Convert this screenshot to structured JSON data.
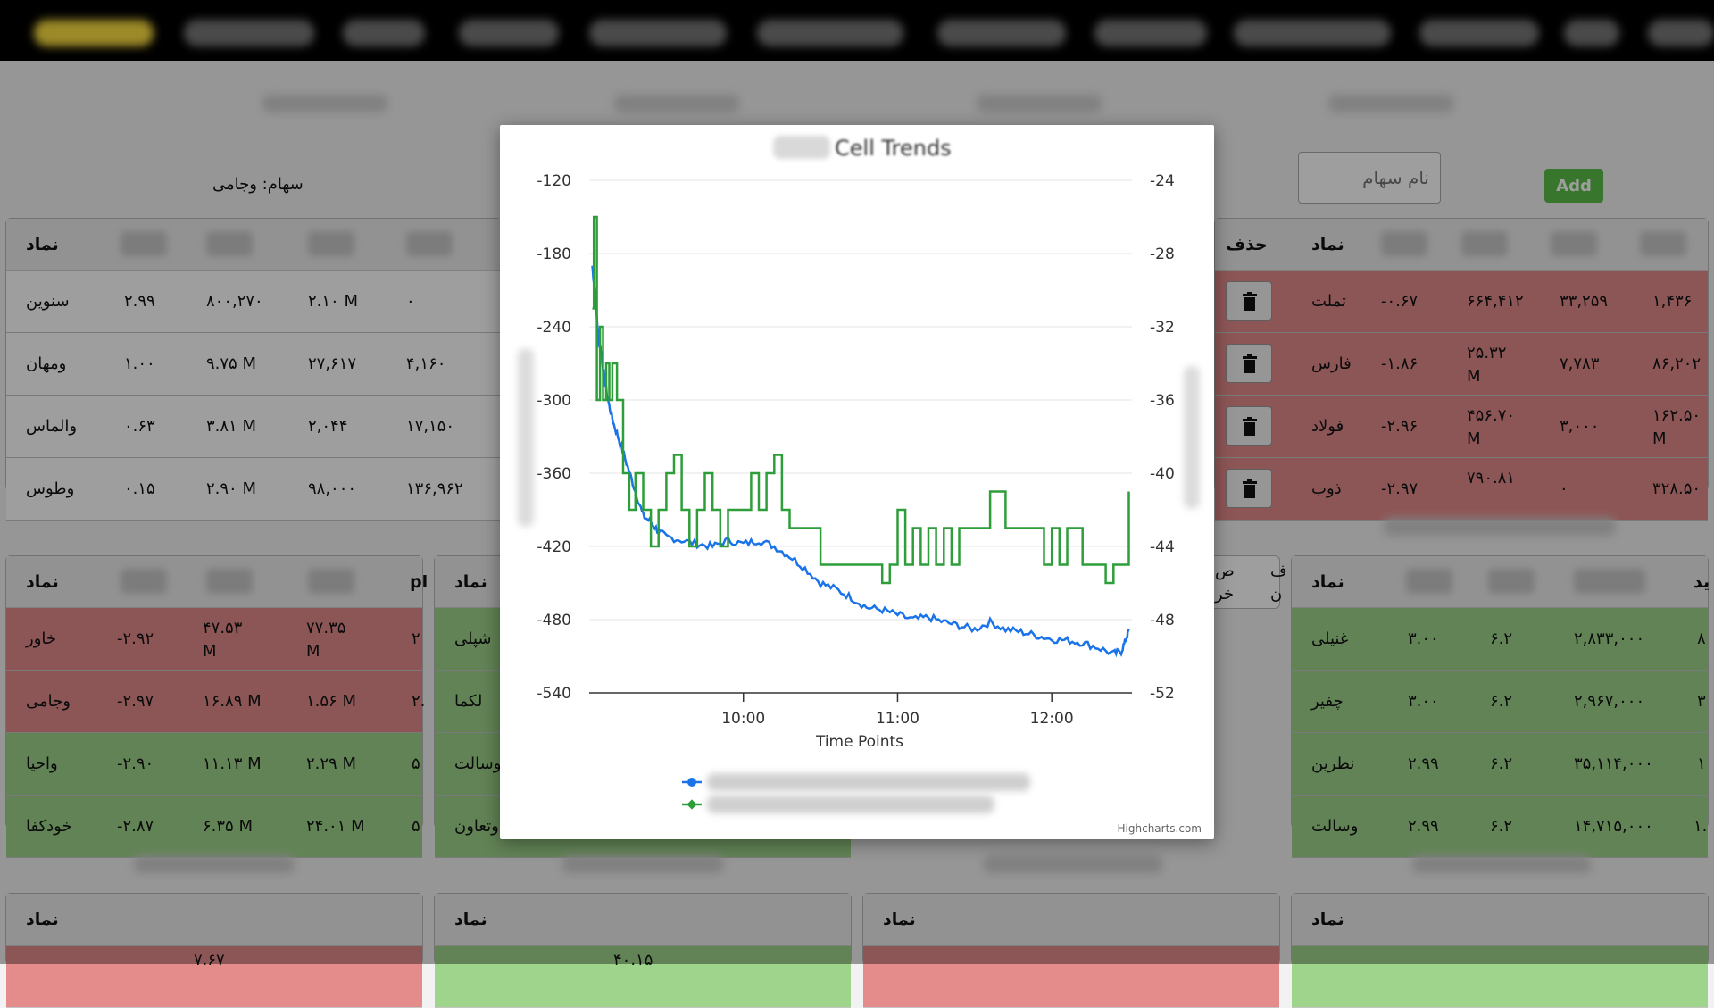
{
  "nav": {
    "items": [
      "",
      "",
      "",
      "",
      "",
      "",
      "",
      "",
      "",
      "",
      "",
      ""
    ],
    "active_index": 0
  },
  "left_panel": {
    "caption": "سهام: وجامی",
    "header_symbol": "نماد",
    "rows": [
      {
        "symbol": "سنوین",
        "c1": "۲.۹۹",
        "c2": "۸۰۰,۲۷۰",
        "c3": "۲.۱۰ M",
        "c4": "۰"
      },
      {
        "symbol": "ومهان",
        "c1": "۱.۰۰",
        "c2": "۹.۷۵ M",
        "c3": "۲۷,۶۱۷",
        "c4": "۴,۱۶۰"
      },
      {
        "symbol": "والماس",
        "c1": "۰.۶۳",
        "c2": "۳.۸۱ M",
        "c3": "۲,۰۴۴",
        "c4": "۱۷,۱۵۰"
      },
      {
        "symbol": "وطوس",
        "c1": "۰.۱۵",
        "c2": "۲.۹۰ M",
        "c3": "۹۸,۰۰۰",
        "c4": "۱۳۶,۹۶۲"
      }
    ]
  },
  "right_panel": {
    "input_placeholder": "نام سهام",
    "add_label": "Add",
    "header_delete": "حذف",
    "header_symbol": "نماد",
    "rows": [
      {
        "symbol": "تملت",
        "c1": "-۰.۶۷",
        "c2": "۶۶۴,۴۱۲",
        "c3": "۳۳,۲۵۹",
        "c4": "۱,۴۳۶"
      },
      {
        "symbol": "فارس",
        "c1": "-۱.۸۶",
        "c2": "۲۵.۳۲ M",
        "c3": "۷,۷۸۳",
        "c4": "۸۶,۲۰۲"
      },
      {
        "symbol": "فولاد",
        "c1": "-۲.۹۶",
        "c2": "۴۵۶.۷۰ M",
        "c3": "۳,۰۰۰",
        "c4": "۱۶۲.۵۰ M"
      },
      {
        "symbol": "ذوب",
        "c1": "-۲.۹۷",
        "c2": "۷۹۰.۸۱",
        "c3": "۰",
        "c4": "۳۲۸.۵۰"
      }
    ]
  },
  "panel_a": {
    "header_symbol": "نماد",
    "header_extra": "pl",
    "rows": [
      {
        "symbol": "خاور",
        "c1": "-۲.۹۲",
        "c2": "۴۷.۵۳ M",
        "c3": "۷۷.۳۵ M",
        "c4": "۲",
        "tone": "red"
      },
      {
        "symbol": "وجامی",
        "c1": "-۲.۹۷",
        "c2": "۱۶.۸۹ M",
        "c3": "۱.۵۶ M",
        "c4": "۲.",
        "tone": "red"
      },
      {
        "symbol": "واحیا",
        "c1": "-۲.۹۰",
        "c2": "۱۱.۱۳ M",
        "c3": "۲.۲۹ M",
        "c4": "۵",
        "tone": "green"
      },
      {
        "symbol": "خودکفا",
        "c1": "-۲.۸۷",
        "c2": "۶.۳۵ M",
        "c3": "۲۴.۰۱ M",
        "c4": "۵",
        "tone": "green"
      }
    ]
  },
  "panel_b": {
    "header_symbol": "نماد",
    "rows": [
      {
        "symbol": "شپلی",
        "tone": "green"
      },
      {
        "symbol": "لکما",
        "tone": "green"
      },
      {
        "symbol": "وسالت",
        "tone": "green"
      },
      {
        "symbol": "وتعاون",
        "tone": "green"
      }
    ]
  },
  "panel_c_partial": {
    "header_line1": "ص",
    "header_line2": "خر"
  },
  "panel_d_partial": {
    "header_line1": "ف",
    "header_line2": "ن"
  },
  "panel_e": {
    "header_symbol": "نماد",
    "header_extra": "ید",
    "rows": [
      {
        "symbol": "غنیلی",
        "c1": "۳.۰۰",
        "c2": "۶.۲",
        "c3": "۲,۸۳۳,۰۰۰",
        "c4": "۸"
      },
      {
        "symbol": "چفیر",
        "c1": "۳.۰۰",
        "c2": "۶.۲",
        "c3": "۲,۹۶۷,۰۰۰",
        "c4": "۳"
      },
      {
        "symbol": "نطرین",
        "c1": "۲.۹۹",
        "c2": "۶.۲",
        "c3": "۳۵,۱۱۴,۰۰۰",
        "c4": "۱"
      },
      {
        "symbol": "وسالت",
        "c1": "۲.۹۹",
        "c2": "۶.۲",
        "c3": "۱۴,۷۱۵,۰۰۰",
        "c4": "۱."
      }
    ]
  },
  "bottom_panels": {
    "header_symbol": "نماد",
    "peek_1": "۷.۶۷",
    "peek_2": "۴۰.۱۵"
  },
  "chart_data": {
    "type": "line",
    "title_suffix": "Cell Trends",
    "xlabel": "Time Points",
    "x_ticks": [
      "10:00",
      "11:00",
      "12:00"
    ],
    "left_axis": {
      "ticks": [
        -120,
        -180,
        -240,
        -300,
        -360,
        -420,
        -480,
        -540
      ],
      "range": [
        -540,
        -120
      ]
    },
    "right_axis": {
      "ticks": [
        -24,
        -28,
        -32,
        -36,
        -40,
        -44,
        -48,
        -52
      ],
      "range": [
        -52,
        -24
      ]
    },
    "credit": "Highcharts.com",
    "x_range_hours": [
      9.0,
      12.52
    ],
    "series": [
      {
        "color": "#1a73e8",
        "axis": "left",
        "marker": "circle",
        "points": [
          [
            9.02,
            -190
          ],
          [
            9.04,
            -215
          ],
          [
            9.06,
            -250
          ],
          [
            9.08,
            -262
          ],
          [
            9.1,
            -285
          ],
          [
            9.13,
            -305
          ],
          [
            9.16,
            -320
          ],
          [
            9.2,
            -335
          ],
          [
            9.25,
            -355
          ],
          [
            9.3,
            -375
          ],
          [
            9.35,
            -395
          ],
          [
            9.4,
            -400
          ],
          [
            9.45,
            -408
          ],
          [
            9.5,
            -412
          ],
          [
            9.6,
            -415
          ],
          [
            9.7,
            -418
          ],
          [
            9.8,
            -420
          ],
          [
            9.9,
            -415
          ],
          [
            10.0,
            -418
          ],
          [
            10.1,
            -415
          ],
          [
            10.2,
            -420
          ],
          [
            10.3,
            -428
          ],
          [
            10.4,
            -438
          ],
          [
            10.5,
            -450
          ],
          [
            10.6,
            -455
          ],
          [
            10.7,
            -462
          ],
          [
            10.8,
            -470
          ],
          [
            10.9,
            -472
          ],
          [
            11.0,
            -476
          ],
          [
            11.1,
            -480
          ],
          [
            11.2,
            -478
          ],
          [
            11.3,
            -482
          ],
          [
            11.4,
            -485
          ],
          [
            11.5,
            -488
          ],
          [
            11.6,
            -482
          ],
          [
            11.7,
            -488
          ],
          [
            11.8,
            -490
          ],
          [
            11.9,
            -493
          ],
          [
            12.0,
            -496
          ],
          [
            12.1,
            -497
          ],
          [
            12.2,
            -499
          ],
          [
            12.3,
            -503
          ],
          [
            12.4,
            -508
          ],
          [
            12.45,
            -506
          ],
          [
            12.48,
            -497
          ],
          [
            12.5,
            -488
          ]
        ]
      },
      {
        "color": "#2e9e3a",
        "axis": "right",
        "marker": "diamond",
        "points": [
          [
            9.02,
            -31
          ],
          [
            9.03,
            -26
          ],
          [
            9.05,
            -36
          ],
          [
            9.07,
            -32
          ],
          [
            9.09,
            -36
          ],
          [
            9.11,
            -34
          ],
          [
            9.13,
            -36
          ],
          [
            9.15,
            -34
          ],
          [
            9.18,
            -36
          ],
          [
            9.22,
            -40
          ],
          [
            9.26,
            -42
          ],
          [
            9.3,
            -40
          ],
          [
            9.35,
            -42
          ],
          [
            9.4,
            -44
          ],
          [
            9.45,
            -42
          ],
          [
            9.5,
            -40
          ],
          [
            9.55,
            -39
          ],
          [
            9.6,
            -42
          ],
          [
            9.65,
            -44
          ],
          [
            9.7,
            -42
          ],
          [
            9.75,
            -40
          ],
          [
            9.8,
            -42
          ],
          [
            9.85,
            -44
          ],
          [
            9.9,
            -42
          ],
          [
            9.95,
            -42
          ],
          [
            10.0,
            -42
          ],
          [
            10.05,
            -40
          ],
          [
            10.1,
            -42
          ],
          [
            10.15,
            -40
          ],
          [
            10.2,
            -39
          ],
          [
            10.25,
            -42
          ],
          [
            10.3,
            -43
          ],
          [
            10.4,
            -43
          ],
          [
            10.5,
            -45
          ],
          [
            10.6,
            -45
          ],
          [
            10.7,
            -45
          ],
          [
            10.8,
            -45
          ],
          [
            10.9,
            -46
          ],
          [
            10.95,
            -45
          ],
          [
            11.0,
            -42
          ],
          [
            11.05,
            -45
          ],
          [
            11.1,
            -43
          ],
          [
            11.15,
            -45
          ],
          [
            11.2,
            -43
          ],
          [
            11.25,
            -45
          ],
          [
            11.3,
            -43
          ],
          [
            11.35,
            -45
          ],
          [
            11.4,
            -43
          ],
          [
            11.5,
            -43
          ],
          [
            11.6,
            -41
          ],
          [
            11.7,
            -43
          ],
          [
            11.8,
            -43
          ],
          [
            11.9,
            -43
          ],
          [
            11.95,
            -45
          ],
          [
            12.0,
            -43
          ],
          [
            12.05,
            -45
          ],
          [
            12.1,
            -43
          ],
          [
            12.2,
            -45
          ],
          [
            12.3,
            -45
          ],
          [
            12.35,
            -46
          ],
          [
            12.4,
            -45
          ],
          [
            12.45,
            -45
          ],
          [
            12.48,
            -45
          ],
          [
            12.5,
            -41
          ]
        ]
      }
    ]
  }
}
